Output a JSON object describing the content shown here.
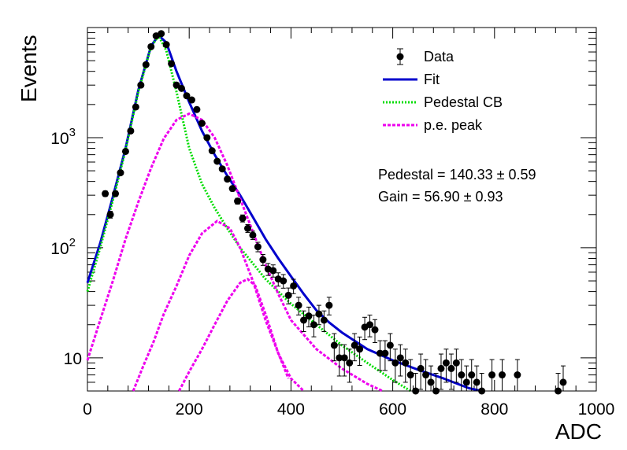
{
  "chart_data": {
    "type": "scatter",
    "xlabel": "ADC",
    "ylabel": "Events",
    "xlim": [
      0,
      1000
    ],
    "ylim": [
      5,
      10000
    ],
    "y_scale": "log",
    "grid": false,
    "legend_position": "top-right",
    "x_ticks": [
      {
        "value": 0,
        "label": "0"
      },
      {
        "value": 200,
        "label": "200"
      },
      {
        "value": 400,
        "label": "400"
      },
      {
        "value": 600,
        "label": "600"
      },
      {
        "value": 800,
        "label": "800"
      },
      {
        "value": 1000,
        "label": "1000"
      }
    ],
    "y_ticks": [
      {
        "value": 10,
        "label": "10"
      },
      {
        "value": 100,
        "label": "10",
        "exponent": "2"
      },
      {
        "value": 1000,
        "label": "10",
        "exponent": "3"
      }
    ],
    "annotations": [
      {
        "id": "pedestal",
        "text": "Pedestal = 140.33 ± 0.59"
      },
      {
        "id": "gain",
        "text": "Gain = 56.90 ± 0.93"
      }
    ],
    "series": [
      {
        "name": "Data",
        "style": "points",
        "color": "#000000",
        "x": [
          35,
          45,
          55,
          65,
          75,
          85,
          95,
          105,
          115,
          125,
          135,
          145,
          155,
          165,
          175,
          185,
          195,
          205,
          215,
          225,
          235,
          245,
          255,
          265,
          275,
          285,
          295,
          305,
          315,
          325,
          335,
          345,
          355,
          365,
          375,
          385,
          395,
          405,
          415,
          425,
          435,
          445,
          455,
          465,
          475,
          485,
          495,
          505,
          515,
          525,
          535,
          545,
          555,
          565,
          575,
          585,
          595,
          605,
          615,
          625,
          635,
          645,
          655,
          665,
          675,
          685,
          695,
          705,
          715,
          725,
          735,
          745,
          755,
          765,
          775,
          795,
          815,
          845,
          925,
          935
        ],
        "y": [
          310,
          200,
          310,
          480,
          750,
          1150,
          1900,
          3000,
          4600,
          6700,
          8400,
          8800,
          7000,
          4700,
          3000,
          2800,
          2400,
          2200,
          1800,
          1350,
          1000,
          760,
          610,
          520,
          420,
          345,
          265,
          185,
          150,
          130,
          102,
          78,
          64,
          62,
          52,
          50,
          37,
          45,
          30,
          22,
          24,
          20,
          25,
          22,
          30,
          13,
          10,
          10,
          9,
          13,
          12,
          19,
          20,
          18,
          11,
          11,
          13,
          9,
          10,
          9,
          7,
          5,
          8,
          7,
          6,
          5,
          8,
          9,
          8,
          9,
          7,
          6,
          7,
          6,
          5,
          7,
          7,
          7,
          5,
          6
        ]
      },
      {
        "name": "Fit",
        "style": "line",
        "color": "#0000cc",
        "x": [
          0,
          25,
          50,
          75,
          100,
          125,
          140,
          155,
          175,
          200,
          225,
          250,
          275,
          300,
          325,
          350,
          375,
          400,
          425,
          450,
          475,
          500,
          550,
          600,
          650,
          700,
          750,
          775
        ],
        "y": [
          48,
          110,
          290,
          800,
          2700,
          6800,
          8500,
          7300,
          4000,
          2100,
          1150,
          700,
          450,
          300,
          190,
          120,
          80,
          55,
          38,
          27,
          21,
          17,
          12,
          9.5,
          7.8,
          6.5,
          5.3,
          5
        ]
      },
      {
        "name": "Pedestal CB",
        "style": "dotted-line",
        "color": "#00dd00",
        "x": [
          0,
          25,
          50,
          75,
          100,
          125,
          140,
          155,
          175,
          200,
          225,
          250,
          275,
          300,
          325,
          350,
          375,
          400,
          450,
          500,
          550,
          600,
          635
        ],
        "y": [
          40,
          100,
          270,
          770,
          2600,
          6700,
          8400,
          6200,
          2600,
          800,
          380,
          230,
          150,
          100,
          72,
          52,
          40,
          31,
          20,
          13,
          9,
          6.3,
          5
        ]
      },
      {
        "name": "p.e. peak",
        "style": "dashed-line",
        "color": "#ee00ee",
        "x": [
          0,
          25,
          50,
          75,
          100,
          125,
          150,
          175,
          200,
          225,
          250,
          275,
          300,
          325,
          350,
          375,
          400,
          450,
          500,
          550,
          580
        ],
        "y": [
          9.5,
          22,
          50,
          120,
          260,
          530,
          980,
          1450,
          1650,
          1450,
          1000,
          560,
          280,
          140,
          70,
          38,
          22,
          12,
          8,
          5.8,
          5
        ]
      },
      {
        "name": "",
        "style": "dashed-line",
        "color": "#ee00ee",
        "x": [
          90,
          110,
          130,
          150,
          175,
          200,
          225,
          255,
          280,
          300,
          325,
          350,
          375,
          400,
          425
        ],
        "y": [
          5,
          8.5,
          14,
          25,
          45,
          85,
          135,
          175,
          150,
          100,
          50,
          22,
          11,
          6.5,
          5
        ]
      },
      {
        "name": "",
        "style": "dashed-line",
        "color": "#ee00ee",
        "x": [
          180,
          200,
          225,
          250,
          275,
          300,
          315,
          330,
          350,
          375,
          395
        ],
        "y": [
          5,
          7.5,
          12,
          20,
          33,
          48,
          52,
          45,
          25,
          11,
          6.5
        ]
      }
    ]
  }
}
